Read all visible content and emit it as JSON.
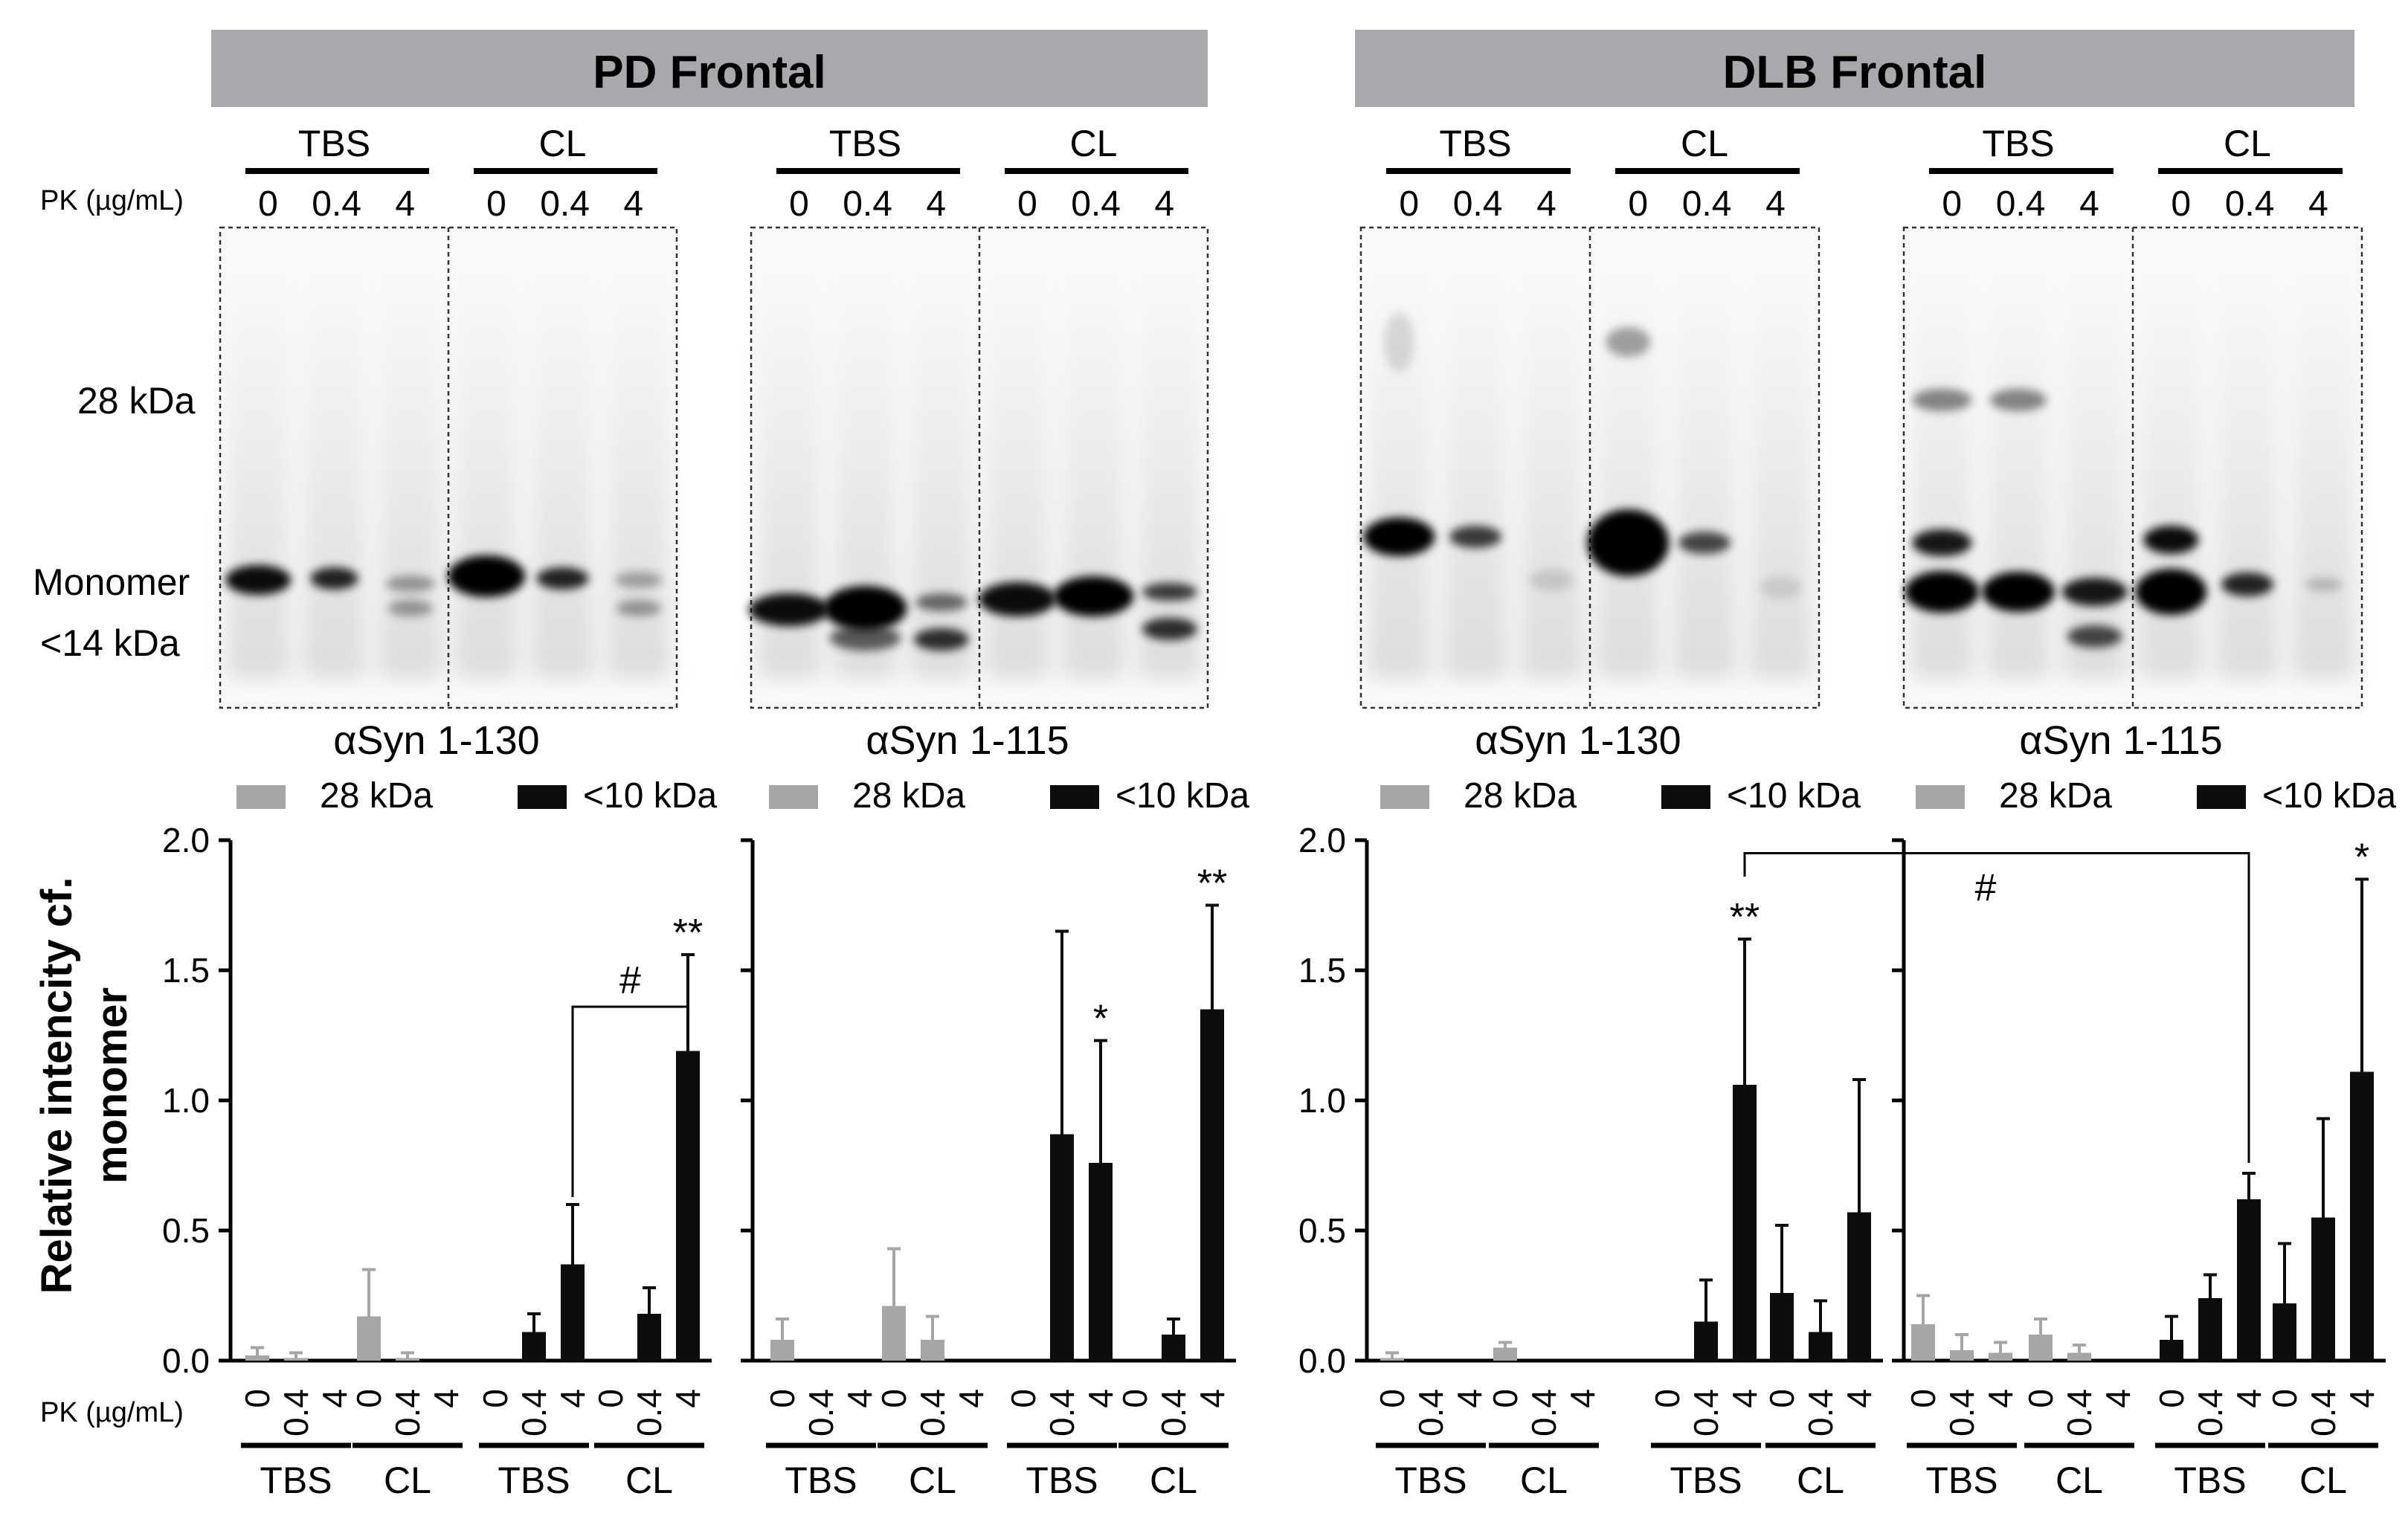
{
  "panels": [
    {
      "title": "PD Frontal",
      "blots": [
        {
          "antibody": "αSyn 1-130",
          "groups": [
            "TBS",
            "CL"
          ]
        },
        {
          "antibody": "αSyn 1-115",
          "groups": [
            "TBS",
            "CL"
          ]
        }
      ]
    },
    {
      "title": "DLB Frontal",
      "blots": [
        {
          "antibody": "αSyn 1-130",
          "groups": [
            "TBS",
            "CL"
          ]
        },
        {
          "antibody": "αSyn 1-115",
          "groups": [
            "TBS",
            "CL"
          ]
        }
      ]
    }
  ],
  "pk_label": "PK (µg/mL)",
  "pk_doses": [
    "0",
    "0.4",
    "4"
  ],
  "mw_markers": [
    "28 kDa",
    "Monomer",
    "<14 kDa"
  ],
  "chart_data": [
    {
      "type": "bar",
      "panel": "PD Frontal",
      "antibody": "αSyn 1-130",
      "ylabel": "Relative intencity cf. monomer",
      "ylim": [
        0,
        2.0
      ],
      "yticks": [
        "0.0",
        "0.5",
        "1.0",
        "1.5",
        "2.0"
      ],
      "legend": [
        "28 kDa",
        "<10 kDa"
      ],
      "series": [
        {
          "name": "28 kDa",
          "groups": [
            "TBS",
            "CL"
          ],
          "values": [
            [
              0.02,
              0.01,
              0.0
            ],
            [
              0.17,
              0.01,
              0.0
            ]
          ],
          "errors": [
            [
              0.03,
              0.02,
              0.0
            ],
            [
              0.18,
              0.02,
              0.0
            ]
          ]
        },
        {
          "name": "<10 kDa",
          "groups": [
            "TBS",
            "CL"
          ],
          "values": [
            [
              0.0,
              0.11,
              0.37
            ],
            [
              0.0,
              0.18,
              1.19
            ]
          ],
          "errors": [
            [
              0.0,
              0.07,
              0.23
            ],
            [
              0.0,
              0.1,
              0.37
            ]
          ]
        }
      ],
      "significance": [
        {
          "series": "<10 kDa",
          "group": 1,
          "dose": 2,
          "label": "**"
        }
      ],
      "comparisons": [
        {
          "from": {
            "group": 0,
            "dose": 2
          },
          "to": {
            "group": 1,
            "dose": 2
          },
          "label": "#"
        }
      ]
    },
    {
      "type": "bar",
      "panel": "PD Frontal",
      "antibody": "αSyn 1-115",
      "ylim": [
        0,
        2.0
      ],
      "legend": [
        "28 kDa",
        "<10 kDa"
      ],
      "series": [
        {
          "name": "28 kDa",
          "groups": [
            "TBS",
            "CL"
          ],
          "values": [
            [
              0.08,
              0.0,
              0.0
            ],
            [
              0.21,
              0.08,
              0.0
            ]
          ],
          "errors": [
            [
              0.08,
              0.0,
              0.0
            ],
            [
              0.22,
              0.09,
              0.0
            ]
          ]
        },
        {
          "name": "<10 kDa",
          "groups": [
            "TBS",
            "CL"
          ],
          "values": [
            [
              0.0,
              0.87,
              0.76
            ],
            [
              0.0,
              0.1,
              1.35
            ]
          ],
          "errors": [
            [
              0.0,
              0.78,
              0.47
            ],
            [
              0.0,
              0.06,
              0.4
            ]
          ]
        }
      ],
      "significance": [
        {
          "series": "<10 kDa",
          "group": 0,
          "dose": 2,
          "label": "*"
        },
        {
          "series": "<10 kDa",
          "group": 1,
          "dose": 2,
          "label": "**"
        }
      ]
    },
    {
      "type": "bar",
      "panel": "DLB Frontal",
      "antibody": "αSyn 1-130",
      "ylim": [
        0,
        2.0
      ],
      "yticks": [
        "0.0",
        "0.5",
        "1.0",
        "1.5",
        "2.0"
      ],
      "legend": [
        "28 kDa",
        "<10 kDa"
      ],
      "series": [
        {
          "name": "28 kDa",
          "groups": [
            "TBS",
            "CL"
          ],
          "values": [
            [
              0.01,
              0.0,
              0.0
            ],
            [
              0.05,
              0.0,
              0.0
            ]
          ],
          "errors": [
            [
              0.02,
              0.0,
              0.0
            ],
            [
              0.02,
              0.0,
              0.0
            ]
          ]
        },
        {
          "name": "<10 kDa",
          "groups": [
            "TBS",
            "CL"
          ],
          "values": [
            [
              0.0,
              0.15,
              1.06
            ],
            [
              0.26,
              0.11,
              0.57
            ]
          ],
          "errors": [
            [
              0.0,
              0.16,
              0.56
            ],
            [
              0.26,
              0.12,
              0.51
            ]
          ]
        }
      ],
      "significance": [
        {
          "series": "<10 kDa",
          "group": 0,
          "dose": 2,
          "label": "**"
        }
      ],
      "comparisons": [
        {
          "from": {
            "chart": 2,
            "group": 0,
            "dose": 2
          },
          "to": {
            "chart": 3,
            "group": 0,
            "dose": 2
          },
          "label": "#"
        }
      ]
    },
    {
      "type": "bar",
      "panel": "DLB Frontal",
      "antibody": "αSyn 1-115",
      "ylim": [
        0,
        2.0
      ],
      "legend": [
        "28 kDa",
        "<10 kDa"
      ],
      "series": [
        {
          "name": "28 kDa",
          "groups": [
            "TBS",
            "CL"
          ],
          "values": [
            [
              0.14,
              0.04,
              0.03
            ],
            [
              0.1,
              0.03,
              0.0
            ]
          ],
          "errors": [
            [
              0.11,
              0.06,
              0.04
            ],
            [
              0.06,
              0.03,
              0.0
            ]
          ]
        },
        {
          "name": "<10 kDa",
          "groups": [
            "TBS",
            "CL"
          ],
          "values": [
            [
              0.08,
              0.24,
              0.62
            ],
            [
              0.22,
              0.55,
              1.11
            ]
          ],
          "errors": [
            [
              0.09,
              0.09,
              0.1
            ],
            [
              0.23,
              0.38,
              0.74
            ]
          ]
        }
      ],
      "significance": [
        {
          "series": "<10 kDa",
          "group": 1,
          "dose": 2,
          "label": "*"
        }
      ]
    }
  ],
  "colors": {
    "series_28kda": "#a6a6a6",
    "series_10kda": "#0d0d0d",
    "header_band": "#a7a9ac"
  }
}
